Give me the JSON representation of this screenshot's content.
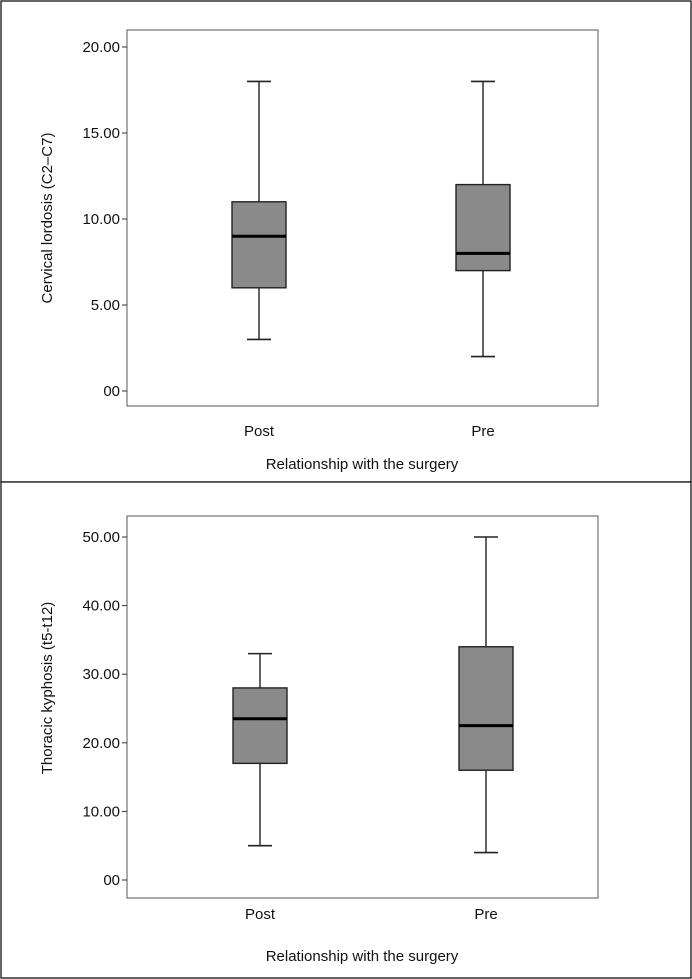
{
  "chart_data": [
    {
      "type": "boxplot",
      "ylabel": "Cervical lordosis (C2–C7)",
      "xlabel": "Relationship with the surgery",
      "categories": [
        "Post",
        "Pre"
      ],
      "ylim": [
        0,
        20
      ],
      "yticks": [
        0,
        5,
        10,
        15,
        20
      ],
      "ytick_labels": [
        "00",
        "5.00",
        "10.00",
        "15.00",
        "20.00"
      ],
      "boxes": [
        {
          "category": "Post",
          "whisker_low": 3,
          "q1": 6,
          "median": 9,
          "q3": 11,
          "whisker_high": 18
        },
        {
          "category": "Pre",
          "whisker_low": 2,
          "q1": 7,
          "median": 8,
          "q3": 12,
          "whisker_high": 18
        }
      ],
      "grid": false,
      "box_color": "#8a8a8a"
    },
    {
      "type": "boxplot",
      "ylabel": "Thoracic kyphosis (t5-t12)",
      "xlabel": "Relationship with the surgery",
      "categories": [
        "Post",
        "Pre"
      ],
      "ylim": [
        0,
        50
      ],
      "yticks": [
        0,
        10,
        20,
        30,
        40,
        50
      ],
      "ytick_labels": [
        "00",
        "10.00",
        "20.00",
        "30.00",
        "40.00",
        "50.00"
      ],
      "boxes": [
        {
          "category": "Post",
          "whisker_low": 5,
          "q1": 17,
          "median": 23.5,
          "q3": 28,
          "whisker_high": 33
        },
        {
          "category": "Pre",
          "whisker_low": 4,
          "q1": 16,
          "median": 22.5,
          "q3": 34,
          "whisker_high": 50
        }
      ],
      "grid": false,
      "box_color": "#8a8a8a"
    }
  ]
}
